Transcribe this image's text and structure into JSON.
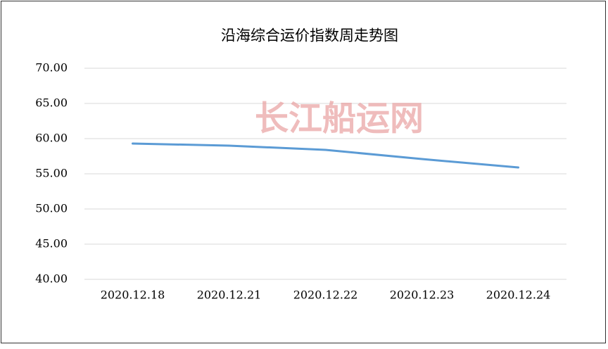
{
  "chart_data": {
    "type": "line",
    "title": "沿海综合运价指数周走势图",
    "watermark": "长江船运网",
    "categories": [
      "2020.12.18",
      "2020.12.21",
      "2020.12.22",
      "2020.12.23",
      "2020.12.24"
    ],
    "values": [
      59.3,
      59.0,
      58.4,
      57.1,
      55.9
    ],
    "color": "#5b9bd5",
    "ylim": [
      40,
      70
    ],
    "yticks": [
      {
        "value": 40,
        "label": "40.00"
      },
      {
        "value": 45,
        "label": "45.00"
      },
      {
        "value": 50,
        "label": "50.00"
      },
      {
        "value": 55,
        "label": "55.00"
      },
      {
        "value": 60,
        "label": "60.00"
      },
      {
        "value": 65,
        "label": "65.00"
      },
      {
        "value": 70,
        "label": "70.00"
      }
    ],
    "grid": true
  }
}
